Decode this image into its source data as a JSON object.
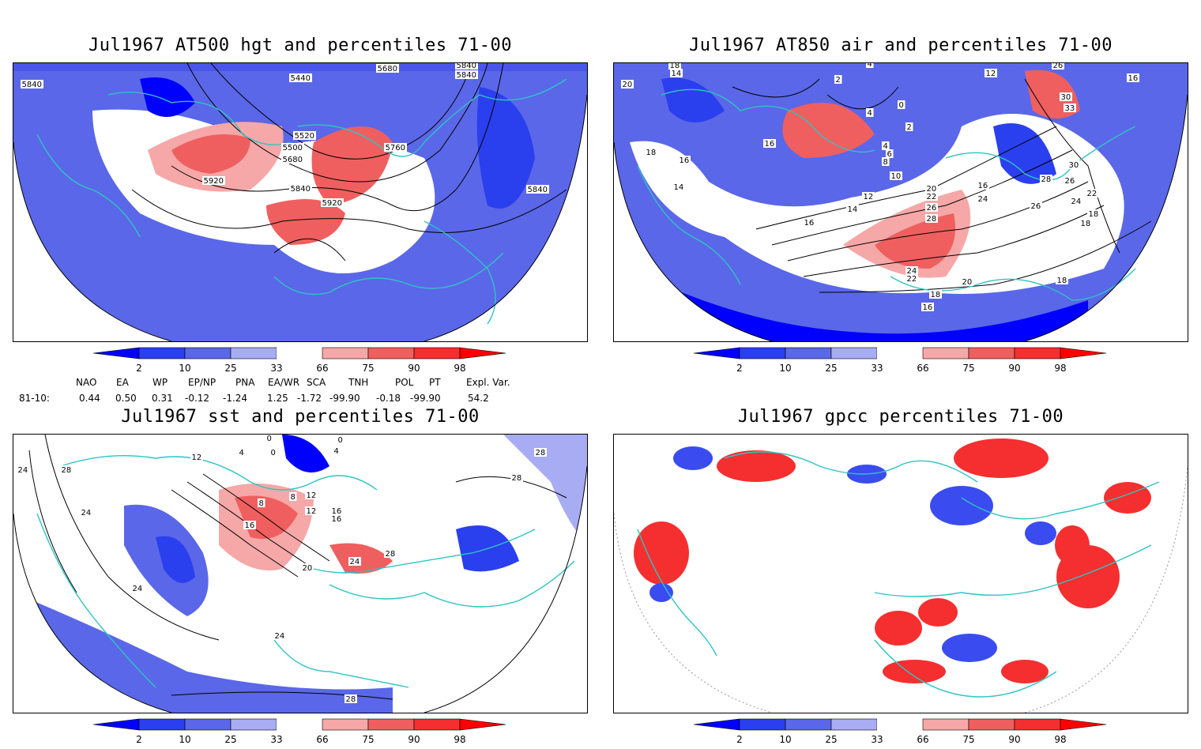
{
  "panels": [
    {
      "title": "Jul1967 AT500 hgt and percentiles 71-00",
      "contour_labels": [
        "5840",
        "5440",
        "5680",
        "5840",
        "5840",
        "5520",
        "5500",
        "5680",
        "5760",
        "5920",
        "5840",
        "5920",
        "5840"
      ]
    },
    {
      "title": "Jul1967 AT850 air and percentiles 71-00",
      "contour_labels": [
        "20",
        "18",
        "14",
        "4",
        "2",
        "12",
        "26",
        "16",
        "2",
        "4",
        "0",
        "30",
        "33",
        "16",
        "18",
        "16",
        "4",
        "6",
        "8",
        "10",
        "14",
        "30",
        "12",
        "20",
        "22",
        "16",
        "28",
        "26",
        "16",
        "24",
        "22",
        "14",
        "26",
        "28",
        "18",
        "26",
        "24",
        "18",
        "16",
        "24",
        "22",
        "20",
        "18",
        "16",
        "18"
      ]
    },
    {
      "title": "Jul1967 sst and percentiles 71-00",
      "contour_labels": [
        "0",
        "0",
        "12",
        "4",
        "0",
        "4",
        "24",
        "28",
        "8",
        "12",
        "8",
        "28",
        "16",
        "12",
        "16",
        "28",
        "16",
        "24",
        "20",
        "24",
        "28",
        "24",
        "24",
        "28"
      ]
    },
    {
      "title": "Jul1967 gpcc percentiles 71-00",
      "contour_labels": []
    }
  ],
  "colorbar": {
    "labels": [
      "2",
      "10",
      "25",
      "33",
      "66",
      "75",
      "90",
      "98"
    ],
    "colors": [
      "#0000ff",
      "#2a3fee",
      "#5a67e8",
      "#a7acf3",
      "#ffffff",
      "#f6a7a7",
      "#ef5f5f",
      "#f52f2f",
      "#ff0000"
    ]
  },
  "indices": {
    "headers": [
      "NAO",
      "EA",
      "WP",
      "EP/NP",
      "PNA",
      "EA/WR",
      "SCA",
      "TNH",
      "POL",
      "PT",
      "Expl. Var."
    ],
    "row_label": "81-10:",
    "values": [
      "0.44",
      "0.50",
      "0.31",
      "-0.12",
      "-1.24",
      "1.25",
      "-1.72",
      "-99.90",
      "-0.18",
      "-99.90",
      "54.2"
    ]
  },
  "colors": {
    "coast": "#2ec4c4",
    "blue_dark": "#0000ff",
    "blue_mid": "#4a56ea",
    "blue_light": "#a7acf3",
    "red_light": "#f6a7a7",
    "red_mid": "#ef5f5f",
    "red_dark": "#f52f2f"
  }
}
